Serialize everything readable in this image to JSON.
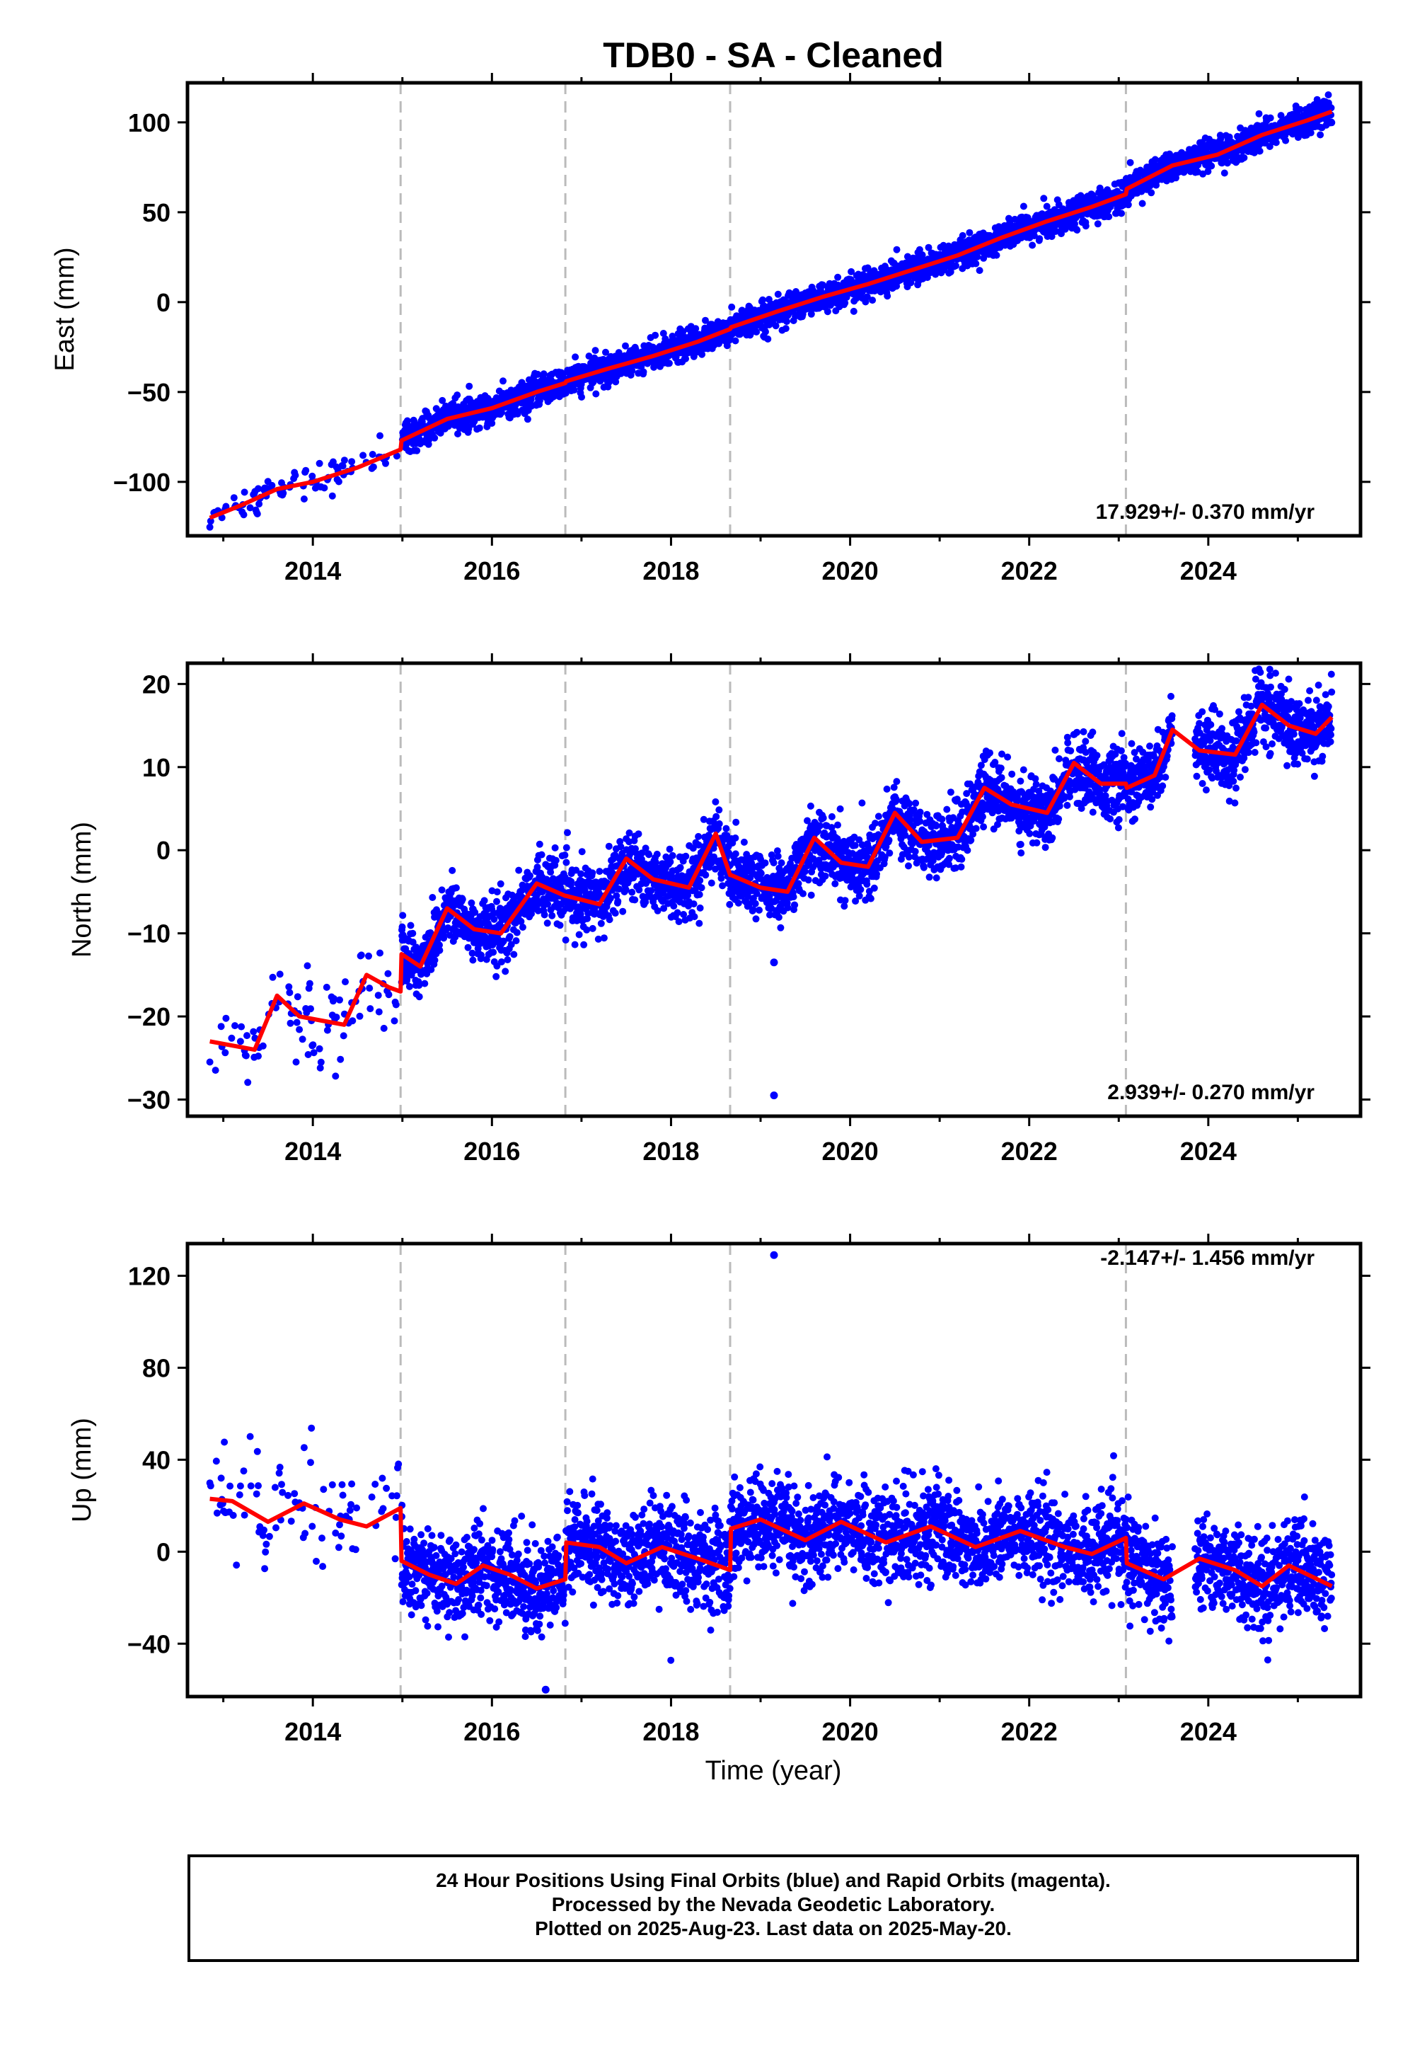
{
  "title": "TDB0  - SA - Cleaned",
  "xlabel": "Time (year)",
  "footer": {
    "line1": "24 Hour Positions Using Final Orbits (blue) and Rapid Orbits (magenta).",
    "line2": "Processed by the Nevada Geodetic Laboratory.",
    "line3": "Plotted on 2025-Aug-23. Last data on 2025-May-20."
  },
  "colors": {
    "data": "#0000ff",
    "model": "#ff0000",
    "breaks": "#bbbbbb"
  },
  "chart_data": [
    {
      "type": "scatter",
      "name": "east",
      "ylabel": "East (mm)",
      "rate_label": "17.929+/- 0.370 mm/yr",
      "xlim": [
        2012.6,
        2025.7
      ],
      "ylim": [
        -130,
        122
      ],
      "xticks": [
        2014,
        2016,
        2018,
        2020,
        2022,
        2024
      ],
      "yticks": [
        -100,
        -50,
        0,
        50,
        100
      ],
      "grid": false,
      "breaks": [
        2014.98,
        2016.82,
        2018.66,
        2023.08
      ],
      "model": {
        "x": [
          2012.85,
          2013.2,
          2013.6,
          2014.0,
          2014.5,
          2014.98,
          2014.99,
          2015.5,
          2016.0,
          2016.5,
          2016.82,
          2016.83,
          2017.3,
          2017.8,
          2018.3,
          2018.66,
          2018.67,
          2019.2,
          2019.7,
          2020.2,
          2020.7,
          2021.2,
          2021.7,
          2022.2,
          2022.7,
          2023.08,
          2023.09,
          2023.6,
          2024.1,
          2024.6,
          2025.1,
          2025.38
        ],
        "y": [
          -120,
          -113,
          -104,
          -100,
          -92,
          -82,
          -77,
          -65,
          -59,
          -50,
          -45,
          -44,
          -37,
          -30,
          -22,
          -15,
          -14,
          -5,
          3,
          10,
          18,
          26,
          36,
          45,
          53,
          60,
          63,
          76,
          82,
          93,
          101,
          106
        ]
      },
      "points_summary": {
        "x_start": 2012.85,
        "x_end": 2025.38,
        "scatter_mm": 4
      }
    },
    {
      "type": "scatter",
      "name": "north",
      "ylabel": "North (mm)",
      "rate_label": "2.939+/- 0.270 mm/yr",
      "xlim": [
        2012.6,
        2025.7
      ],
      "ylim": [
        -32,
        22.5
      ],
      "xticks": [
        2014,
        2016,
        2018,
        2020,
        2022,
        2024
      ],
      "yticks": [
        -30,
        -20,
        -10,
        0,
        10,
        20
      ],
      "grid": false,
      "breaks": [
        2014.98,
        2016.82,
        2018.66,
        2023.08
      ],
      "model": {
        "x": [
          2012.85,
          2013.1,
          2013.35,
          2013.6,
          2013.85,
          2014.1,
          2014.35,
          2014.6,
          2014.85,
          2014.98,
          2014.99,
          2015.2,
          2015.5,
          2015.8,
          2016.1,
          2016.5,
          2016.82,
          2016.83,
          2017.2,
          2017.5,
          2017.8,
          2018.2,
          2018.5,
          2018.66,
          2018.67,
          2019.0,
          2019.3,
          2019.6,
          2019.9,
          2020.2,
          2020.5,
          2020.8,
          2021.2,
          2021.5,
          2021.8,
          2022.2,
          2022.5,
          2022.8,
          2023.08,
          2023.09,
          2023.4,
          2023.6,
          2023.9,
          2024.3,
          2024.6,
          2024.9,
          2025.2,
          2025.38
        ],
        "y": [
          -23,
          -23.5,
          -24,
          -17.5,
          -20,
          -20.5,
          -21,
          -15,
          -16.5,
          -17,
          -12.5,
          -14,
          -7,
          -9.5,
          -10,
          -4,
          -5.5,
          -5.5,
          -6.5,
          -1,
          -3.5,
          -4.5,
          2,
          -3,
          -3,
          -4.5,
          -5,
          1.5,
          -1.5,
          -2,
          4.5,
          1,
          1.5,
          7.5,
          5.5,
          4.5,
          10.5,
          8,
          8,
          7.5,
          9,
          14.5,
          12,
          11.5,
          17.5,
          15,
          14,
          16
        ]
      },
      "outliers": [
        {
          "x": 2019.15,
          "y": -29.5
        },
        {
          "x": 2019.15,
          "y": -13.5
        }
      ],
      "points_summary": {
        "x_start": 2012.85,
        "x_end": 2025.38,
        "scatter_mm": 2
      }
    },
    {
      "type": "scatter",
      "name": "up",
      "ylabel": "Up (mm)",
      "rate_label": "-2.147+/- 1.456 mm/yr",
      "xlim": [
        2012.6,
        2025.7
      ],
      "ylim": [
        -63,
        134
      ],
      "xticks": [
        2014,
        2016,
        2018,
        2020,
        2022,
        2024
      ],
      "yticks": [
        -40,
        0,
        40,
        80,
        120
      ],
      "grid": false,
      "breaks": [
        2014.98,
        2016.82,
        2018.66,
        2023.08
      ],
      "model": {
        "x": [
          2012.85,
          2013.1,
          2013.5,
          2013.9,
          2014.3,
          2014.6,
          2014.98,
          2014.99,
          2015.3,
          2015.6,
          2015.9,
          2016.2,
          2016.5,
          2016.82,
          2016.83,
          2017.2,
          2017.5,
          2017.9,
          2018.3,
          2018.66,
          2018.67,
          2019.0,
          2019.5,
          2019.9,
          2020.4,
          2020.9,
          2021.4,
          2021.9,
          2022.4,
          2022.7,
          2023.08,
          2023.09,
          2023.5,
          2023.9,
          2024.3,
          2024.6,
          2024.9,
          2025.38
        ],
        "y": [
          23,
          22,
          13,
          21,
          14,
          11,
          19,
          -4,
          -10,
          -14,
          -6,
          -10,
          -16,
          -12,
          4,
          2,
          -5,
          2,
          -3,
          -8,
          10,
          14,
          5,
          13,
          4,
          11,
          2,
          9,
          2,
          -1,
          6,
          -5,
          -12,
          -3,
          -8,
          -15,
          -6,
          -15
        ]
      },
      "outliers": [
        {
          "x": 2019.15,
          "y": 129
        },
        {
          "x": 2016.6,
          "y": -60
        }
      ],
      "points_summary": {
        "x_start": 2012.85,
        "x_end": 2025.38,
        "scatter_mm": 10
      }
    }
  ]
}
